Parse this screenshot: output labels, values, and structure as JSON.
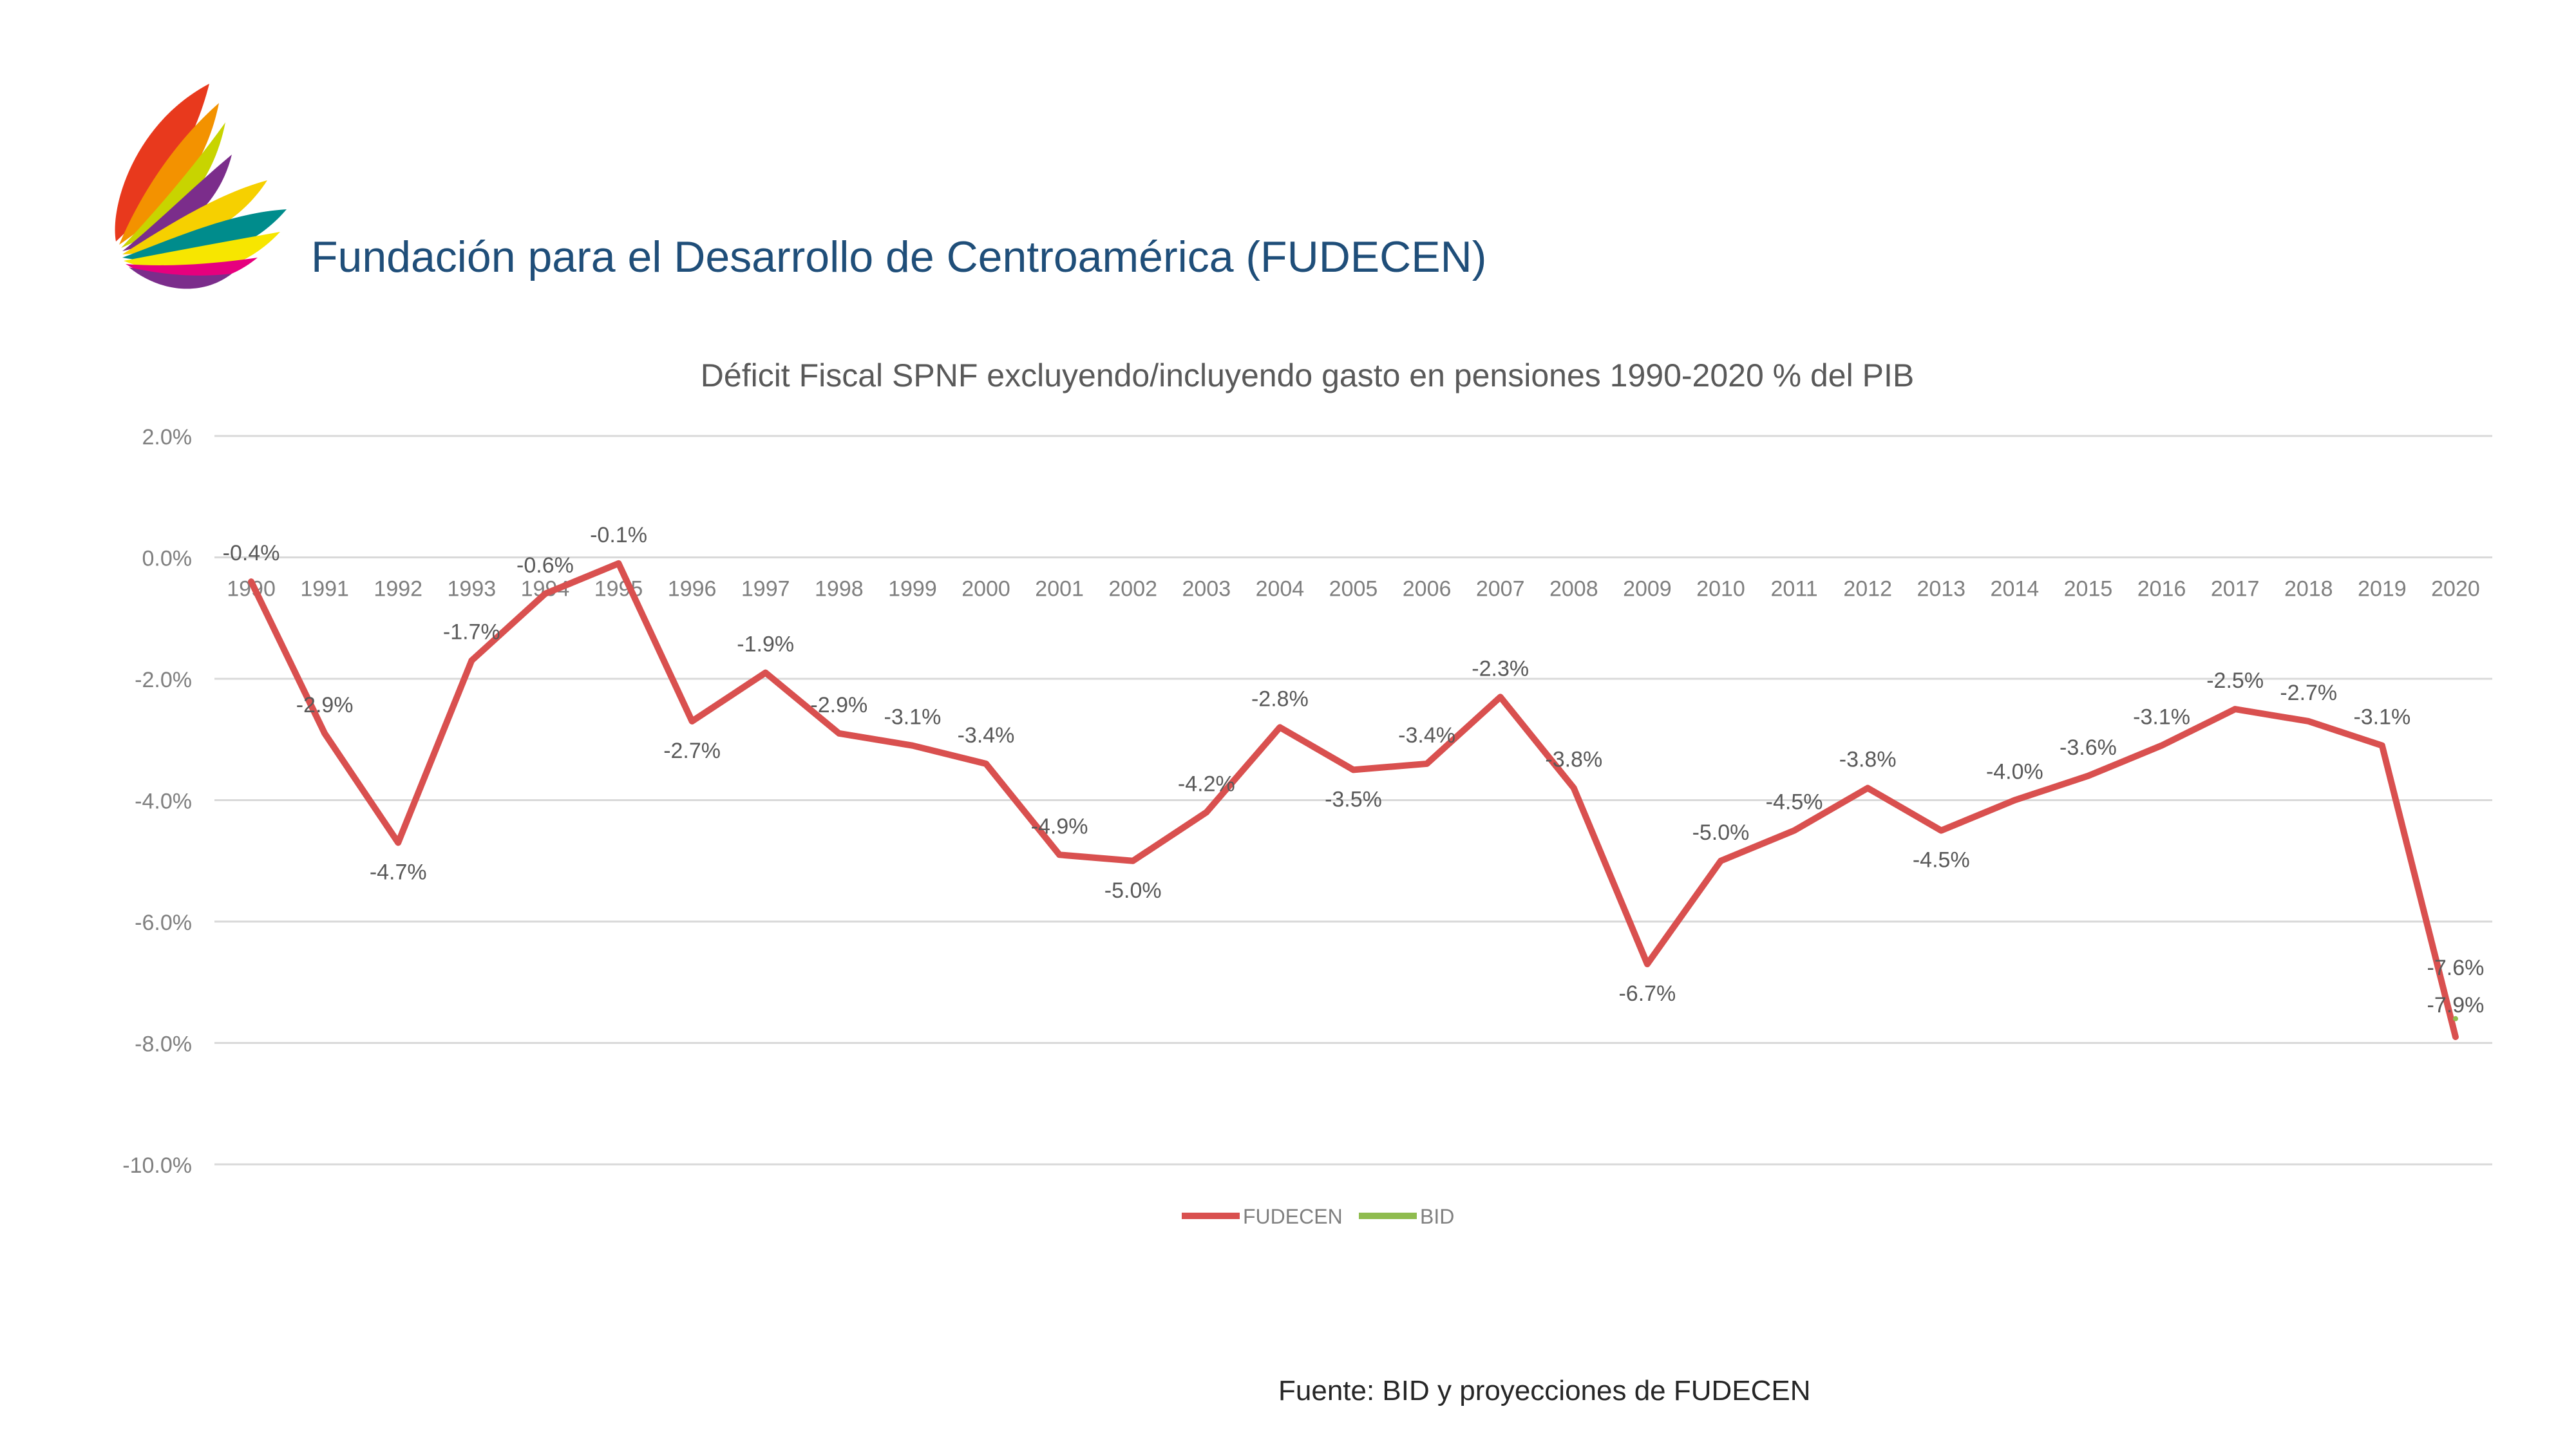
{
  "header": {
    "org_title": "Fundación para el Desarrollo de Centroamérica (FUDECEN)"
  },
  "footer": {
    "source": "Fuente: BID y proyecciones de FUDECEN"
  },
  "colors": {
    "fudecen": "#d9504f",
    "bid": "#8fbc4f",
    "title_blue": "#1f4e79",
    "grid": "#d9d9d9",
    "axis_text": "#7f7f7f"
  },
  "chart_data": {
    "type": "line",
    "title": "Déficit Fiscal SPNF excluyendo/incluyendo gasto en pensiones 1990-2020 % del PIB",
    "xlabel": "",
    "ylabel": "",
    "ylim": [
      -10,
      2
    ],
    "y_ticks": [
      {
        "value": 2,
        "label": "2.0%"
      },
      {
        "value": 0,
        "label": "0.0%"
      },
      {
        "value": -2,
        "label": "-2.0%"
      },
      {
        "value": -4,
        "label": "-4.0%"
      },
      {
        "value": -6,
        "label": "-6.0%"
      },
      {
        "value": -8,
        "label": "-8.0%"
      },
      {
        "value": -10,
        "label": "-10.0%"
      }
    ],
    "grid": true,
    "legend_position": "bottom",
    "categories": [
      "1990",
      "1991",
      "1992",
      "1993",
      "1994",
      "1995",
      "1996",
      "1997",
      "1998",
      "1999",
      "2000",
      "2001",
      "2002",
      "2003",
      "2004",
      "2005",
      "2006",
      "2007",
      "2008",
      "2009",
      "2010",
      "2011",
      "2012",
      "2013",
      "2014",
      "2015",
      "2016",
      "2017",
      "2018",
      "2019",
      "2020"
    ],
    "series": [
      {
        "name": "FUDECEN",
        "color": "#d9504f",
        "values": [
          -0.4,
          -2.9,
          -4.7,
          -1.7,
          -0.6,
          -0.1,
          -2.7,
          -1.9,
          -2.9,
          -3.1,
          -3.4,
          -4.9,
          -5.0,
          -4.2,
          -2.8,
          -3.5,
          -3.4,
          -2.3,
          -3.8,
          -6.7,
          -5.0,
          -4.5,
          -3.8,
          -4.5,
          -4.0,
          -3.6,
          -3.1,
          -2.5,
          -2.7,
          -3.1,
          -7.9
        ],
        "labels": [
          "-0.4%",
          "-2.9%",
          "-4.7%",
          "-1.7%",
          "-0.6%",
          "-0.1%",
          "-2.7%",
          "-1.9%",
          "-2.9%",
          "-3.1%",
          "-3.4%",
          "-4.9%",
          "-5.0%",
          "-4.2%",
          "-2.8%",
          "-3.5%",
          "-3.4%",
          "-2.3%",
          "-3.8%",
          "-6.7%",
          "-5.0%",
          "-4.5%",
          "-3.8%",
          "-4.5%",
          "-4.0%",
          "-3.6%",
          "-3.1%",
          "-2.5%",
          "-2.7%",
          "-3.1%",
          "-7.9%"
        ]
      },
      {
        "name": "BID",
        "color": "#8fbc4f",
        "values": [
          null,
          null,
          null,
          null,
          null,
          null,
          null,
          null,
          null,
          null,
          null,
          null,
          null,
          null,
          null,
          null,
          null,
          null,
          null,
          null,
          null,
          null,
          null,
          null,
          null,
          null,
          null,
          null,
          null,
          null,
          -7.6
        ],
        "labels": [
          "",
          "",
          "",
          "",
          "",
          "",
          "",
          "",
          "",
          "",
          "",
          "",
          "",
          "",
          "",
          "",
          "",
          "",
          "",
          "",
          "",
          "",
          "",
          "",
          "",
          "",
          "",
          "",
          "",
          "",
          "-7.6%"
        ]
      }
    ]
  }
}
